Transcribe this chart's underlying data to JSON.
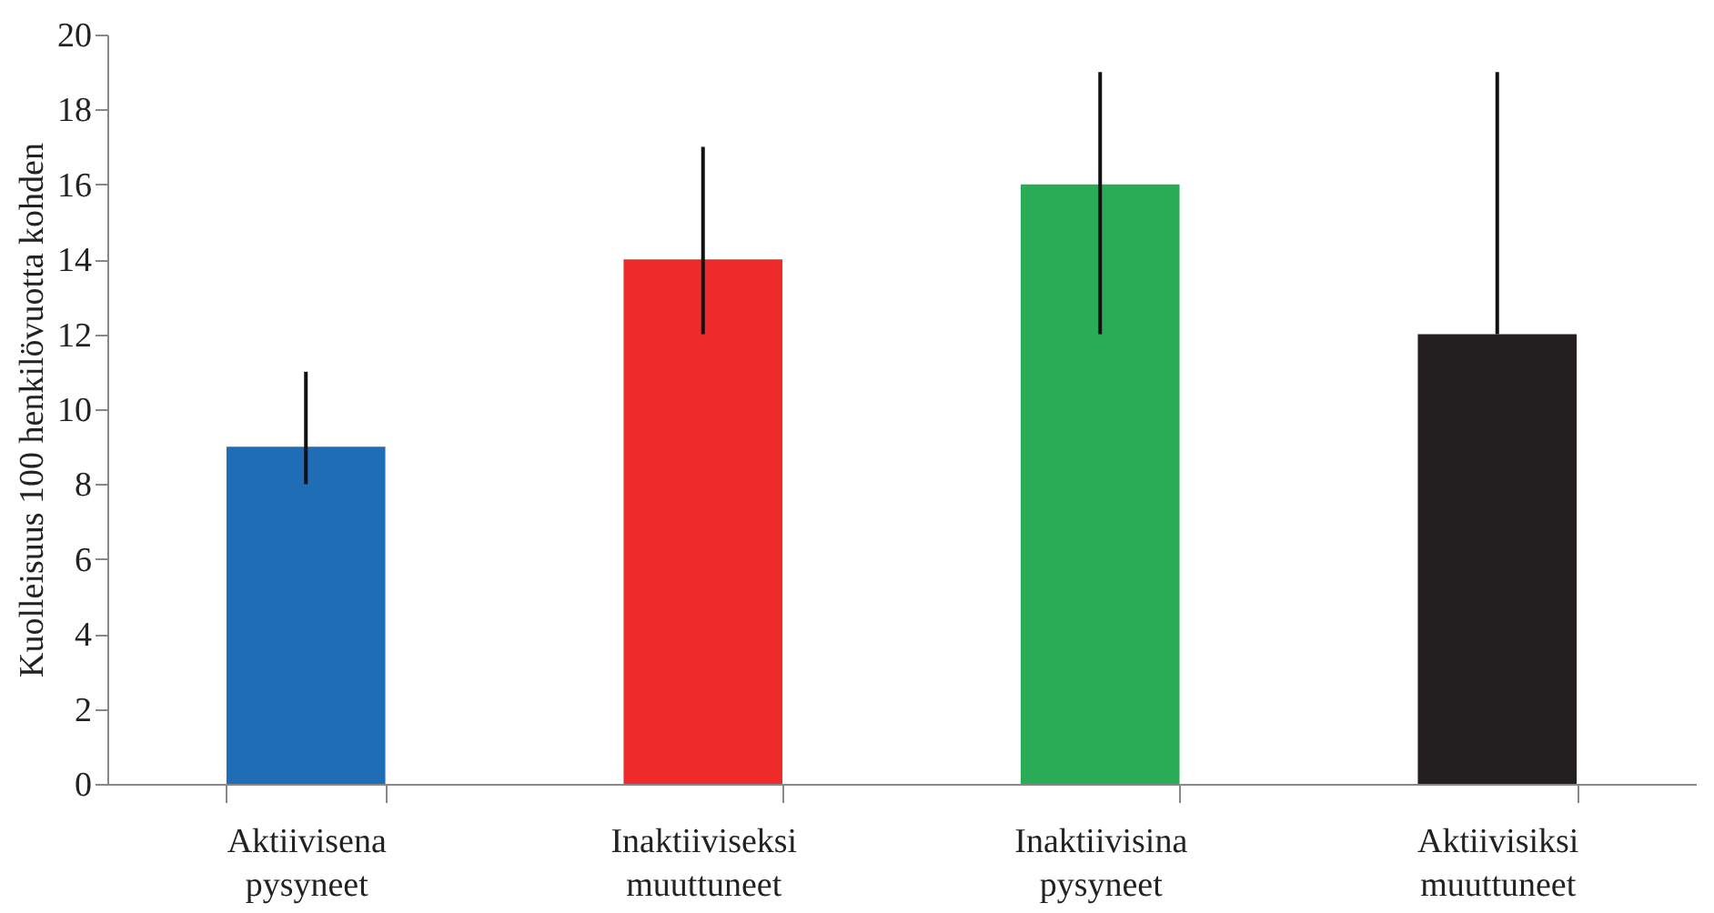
{
  "chart_data": {
    "type": "bar",
    "ylabel": "Kuolleisuus 100 henkilövuotta kohden",
    "categories": [
      "Aktiivisena pysyneet",
      "Inaktiiviseksi muuttuneet",
      "Inaktiivisina pysyneet",
      "Aktiivisiksi muuttuneet"
    ],
    "values": [
      9,
      14,
      16,
      12
    ],
    "colors": [
      "#1f6db5",
      "#ee2a2a",
      "#2aab55",
      "#231f20"
    ],
    "errors": [
      [
        8,
        11
      ],
      [
        12,
        17
      ],
      [
        12,
        19
      ],
      [
        12,
        19
      ]
    ],
    "ylim": [
      0,
      20
    ],
    "yticks": [
      0,
      2,
      4,
      6,
      8,
      10,
      12,
      14,
      16,
      18,
      20
    ],
    "grid": false
  }
}
